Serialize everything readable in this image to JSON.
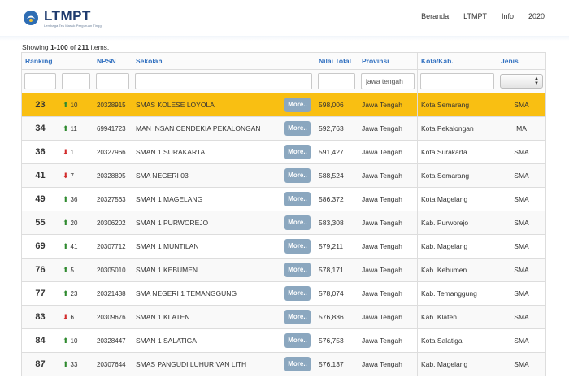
{
  "brand": {
    "name": "LTMPT",
    "subtitle": "Lembaga Tes Masuk Perguruan Tinggi"
  },
  "nav": [
    "Beranda",
    "LTMPT",
    "Info",
    "2020"
  ],
  "summary": {
    "prefix": "Showing ",
    "range": "1-100",
    "middle": " of ",
    "total": "211",
    "suffix": " items."
  },
  "columns": {
    "ranking": "Ranking",
    "change": "",
    "npsn": "NPSN",
    "sekolah": "Sekolah",
    "nilai": "Nilai Total",
    "provinsi": "Provinsi",
    "kota": "Kota/Kab.",
    "jenis": "Jenis"
  },
  "filters": {
    "provinsi_value": "jawa tengah"
  },
  "more_label": "More..",
  "colors": {
    "highlight": "#f9bf12",
    "header_text": "#3271c0",
    "up": "#2f8a2f",
    "down": "#d22b2b",
    "more_button": "#8ba7bf"
  },
  "rows": [
    {
      "ranking": "23",
      "dir": "up",
      "change": "10",
      "npsn": "20328915",
      "sekolah": "SMAS KOLESE LOYOLA",
      "nilai": "598,006",
      "provinsi": "Jawa Tengah",
      "kota": "Kota Semarang",
      "jenis": "SMA"
    },
    {
      "ranking": "34",
      "dir": "up",
      "change": "11",
      "npsn": "69941723",
      "sekolah": "MAN INSAN CENDEKIA PEKALONGAN",
      "nilai": "592,763",
      "provinsi": "Jawa Tengah",
      "kota": "Kota Pekalongan",
      "jenis": "MA"
    },
    {
      "ranking": "36",
      "dir": "down",
      "change": "1",
      "npsn": "20327966",
      "sekolah": "SMAN 1 SURAKARTA",
      "nilai": "591,427",
      "provinsi": "Jawa Tengah",
      "kota": "Kota Surakarta",
      "jenis": "SMA"
    },
    {
      "ranking": "41",
      "dir": "down",
      "change": "7",
      "npsn": "20328895",
      "sekolah": "SMA NEGERI 03",
      "nilai": "588,524",
      "provinsi": "Jawa Tengah",
      "kota": "Kota Semarang",
      "jenis": "SMA"
    },
    {
      "ranking": "49",
      "dir": "up",
      "change": "36",
      "npsn": "20327563",
      "sekolah": "SMAN 1 MAGELANG",
      "nilai": "586,372",
      "provinsi": "Jawa Tengah",
      "kota": "Kota Magelang",
      "jenis": "SMA"
    },
    {
      "ranking": "55",
      "dir": "up",
      "change": "20",
      "npsn": "20306202",
      "sekolah": "SMAN 1 PURWOREJO",
      "nilai": "583,308",
      "provinsi": "Jawa Tengah",
      "kota": "Kab. Purworejo",
      "jenis": "SMA"
    },
    {
      "ranking": "69",
      "dir": "up",
      "change": "41",
      "npsn": "20307712",
      "sekolah": "SMAN 1 MUNTILAN",
      "nilai": "579,211",
      "provinsi": "Jawa Tengah",
      "kota": "Kab. Magelang",
      "jenis": "SMA"
    },
    {
      "ranking": "76",
      "dir": "up",
      "change": "5",
      "npsn": "20305010",
      "sekolah": "SMAN 1 KEBUMEN",
      "nilai": "578,171",
      "provinsi": "Jawa Tengah",
      "kota": "Kab. Kebumen",
      "jenis": "SMA"
    },
    {
      "ranking": "77",
      "dir": "up",
      "change": "23",
      "npsn": "20321438",
      "sekolah": "SMA NEGERI 1 TEMANGGUNG",
      "nilai": "578,074",
      "provinsi": "Jawa Tengah",
      "kota": "Kab. Temanggung",
      "jenis": "SMA"
    },
    {
      "ranking": "83",
      "dir": "down",
      "change": "6",
      "npsn": "20309676",
      "sekolah": "SMAN 1 KLATEN",
      "nilai": "576,836",
      "provinsi": "Jawa Tengah",
      "kota": "Kab. Klaten",
      "jenis": "SMA"
    },
    {
      "ranking": "84",
      "dir": "up",
      "change": "10",
      "npsn": "20328447",
      "sekolah": "SMAN 1 SALATIGA",
      "nilai": "576,753",
      "provinsi": "Jawa Tengah",
      "kota": "Kota Salatiga",
      "jenis": "SMA"
    },
    {
      "ranking": "87",
      "dir": "up",
      "change": "33",
      "npsn": "20307644",
      "sekolah": "SMAS PANGUDI LUHUR VAN LITH",
      "nilai": "576,137",
      "provinsi": "Jawa Tengah",
      "kota": "Kab. Magelang",
      "jenis": "SMA"
    }
  ]
}
